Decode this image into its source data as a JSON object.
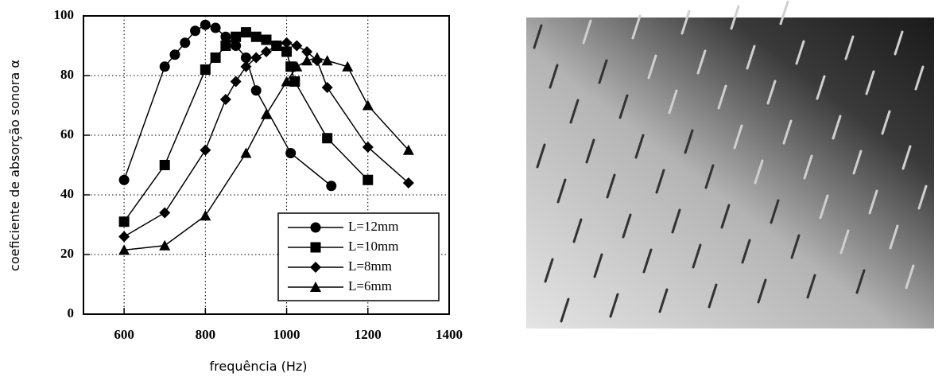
{
  "chart_data": {
    "type": "line",
    "xlabel": "frequência (Hz)",
    "ylabel": "coeficiente de absorção sonora α",
    "xlim": [
      500,
      1400
    ],
    "ylim": [
      0,
      100
    ],
    "xticks": [
      600,
      800,
      1000,
      1200,
      1400
    ],
    "yticks": [
      0,
      20,
      40,
      60,
      80,
      100
    ],
    "grid": true,
    "legend": "lower right",
    "series": [
      {
        "name": "L=12mm",
        "color": "#000000",
        "marker": "circle",
        "x": [
          600,
          700,
          725,
          750,
          775,
          800,
          825,
          850,
          875,
          900,
          925,
          1010,
          1110
        ],
        "values": [
          45,
          83,
          87,
          91,
          95,
          97,
          96,
          93,
          90,
          86,
          75,
          54,
          43
        ]
      },
      {
        "name": "L=10mm",
        "color": "#000000",
        "marker": "square",
        "x": [
          600,
          700,
          800,
          825,
          850,
          875,
          900,
          925,
          950,
          975,
          1000,
          1010,
          1020,
          1100,
          1200
        ],
        "values": [
          31,
          50,
          82,
          86,
          90,
          93,
          94.5,
          93,
          92,
          90,
          88,
          83,
          78,
          59,
          45
        ]
      },
      {
        "name": "L=8mm",
        "color": "#000000",
        "marker": "diamond",
        "x": [
          600,
          700,
          800,
          850,
          875,
          900,
          925,
          950,
          975,
          1000,
          1025,
          1050,
          1075,
          1100,
          1200,
          1300
        ],
        "values": [
          26,
          34,
          55,
          72,
          78,
          83,
          86,
          88,
          90,
          91,
          90,
          88,
          85,
          76,
          56,
          44
        ]
      },
      {
        "name": "L=6mm",
        "color": "#000000",
        "marker": "triangle",
        "x": [
          600,
          700,
          800,
          900,
          950,
          1000,
          1025,
          1050,
          1075,
          1100,
          1150,
          1200,
          1300
        ],
        "values": [
          21.5,
          23,
          33,
          54,
          67,
          78,
          83,
          85,
          86,
          85,
          83,
          70,
          55
        ]
      }
    ]
  }
}
